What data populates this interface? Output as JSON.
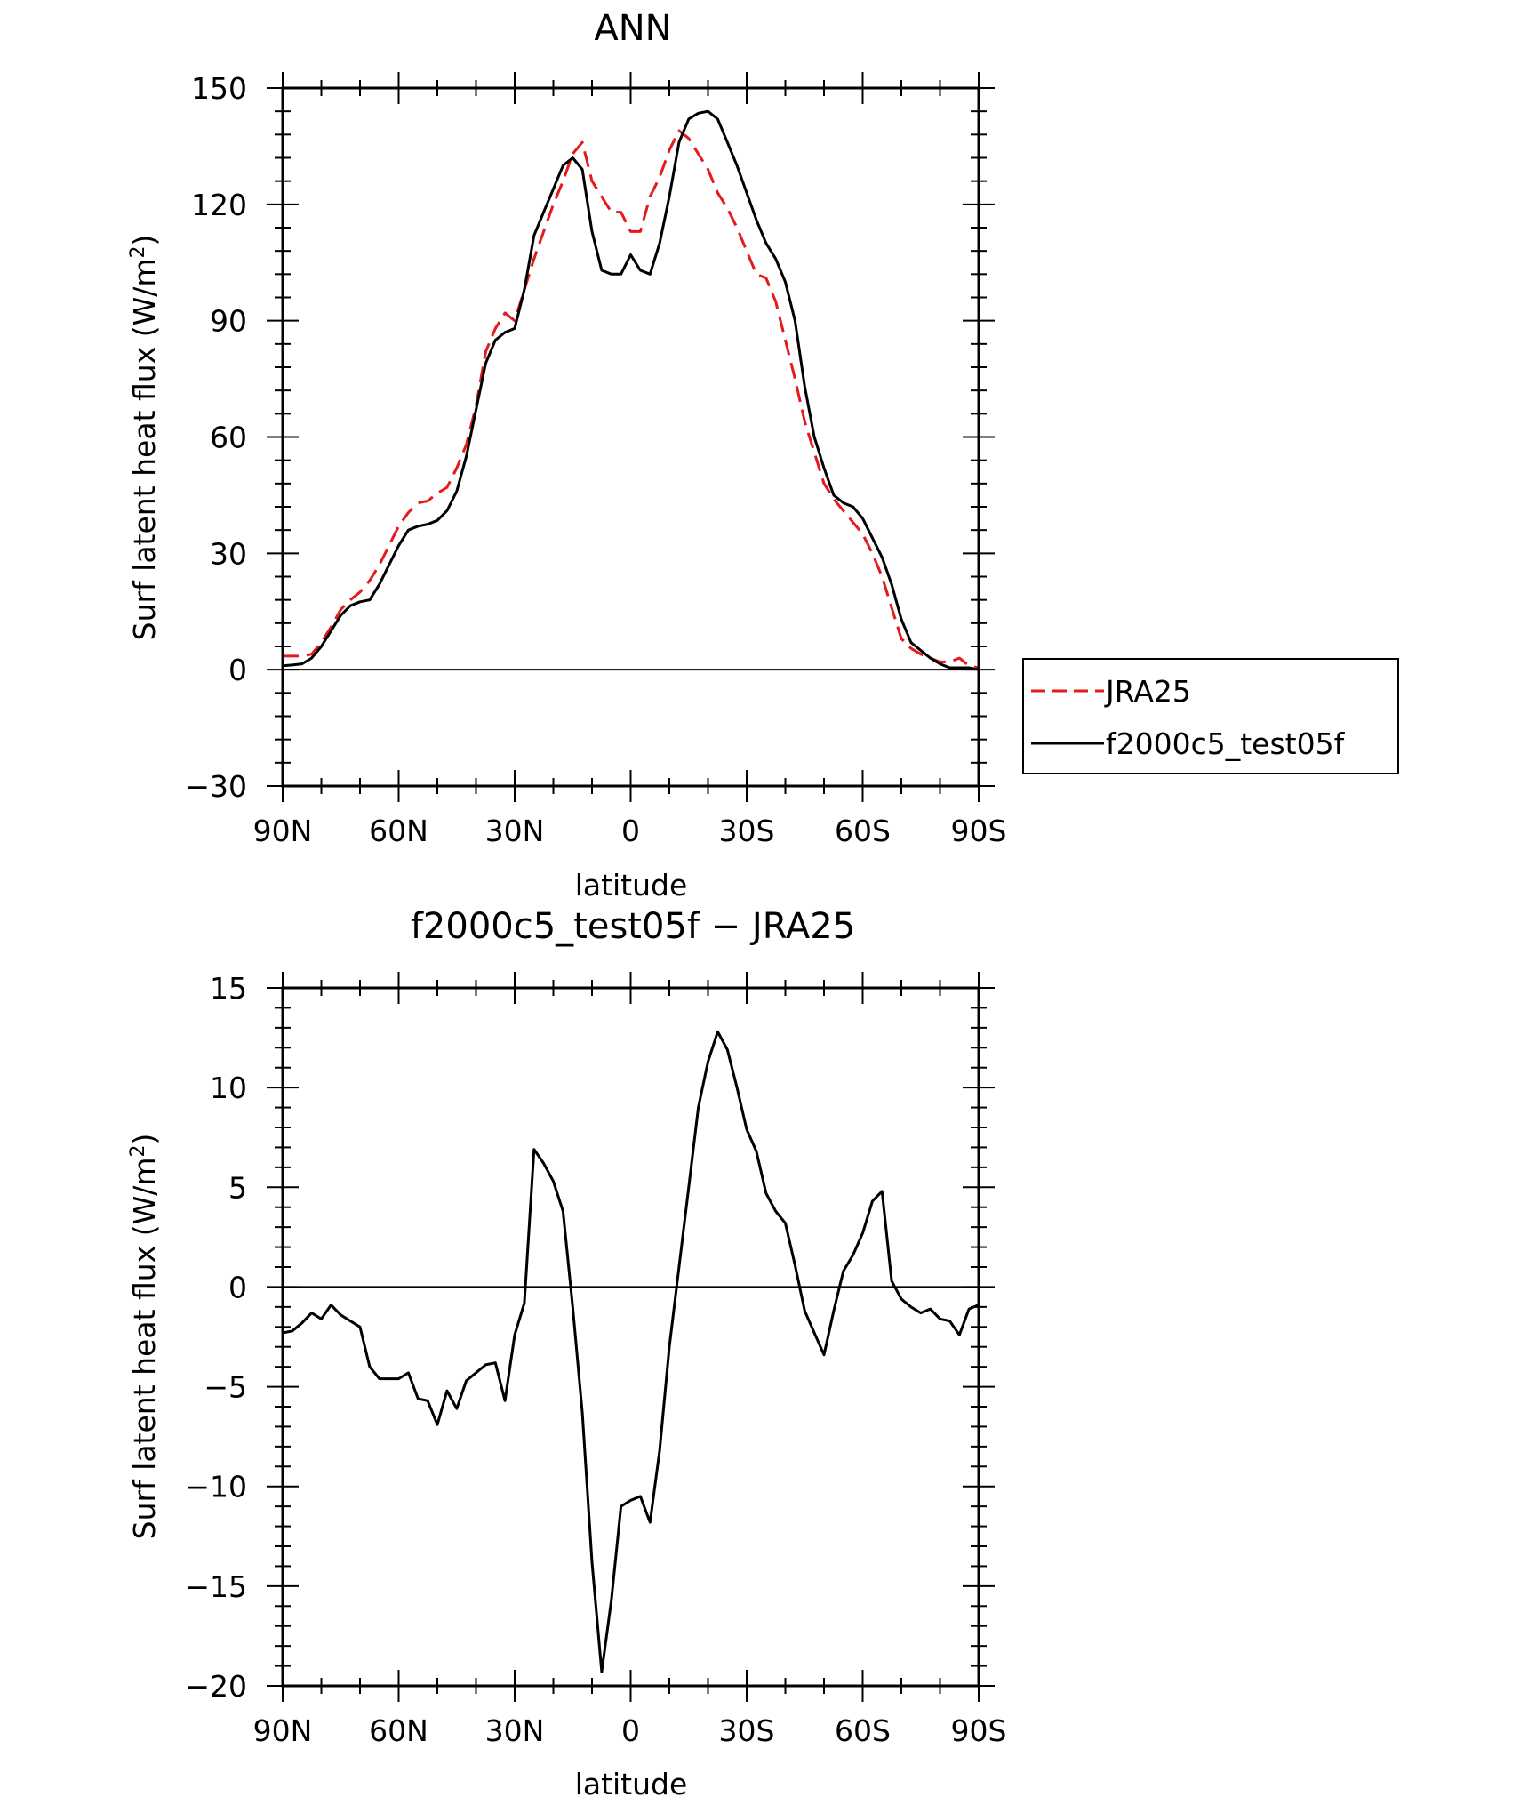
{
  "chart_data": [
    {
      "type": "line",
      "title": "ANN",
      "xlabel": "latitude",
      "ylabel": "Surf latent heat flux (W/m²)",
      "ylabel_main": "Surf latent heat flux (W/m",
      "ylabel_sup": "2",
      "ylabel_end": ")",
      "xlim": [
        90,
        -90
      ],
      "ylim": [
        -30,
        150
      ],
      "x_tick_values": [
        90,
        60,
        30,
        0,
        -30,
        -60,
        -90
      ],
      "x_tick_labels": [
        "90N",
        "60N",
        "30N",
        "0",
        "30S",
        "60S",
        "90S"
      ],
      "y_tick_values": [
        -30,
        0,
        30,
        60,
        90,
        120,
        150
      ],
      "y_tick_labels": [
        "−30",
        "0",
        "30",
        "60",
        "90",
        "120",
        "150"
      ],
      "legend_position": "right",
      "legend": [
        "JRA25",
        "f2000c5_test05f"
      ],
      "series": [
        {
          "name": "JRA25",
          "color": "#e41a1c",
          "dash": true,
          "x": [
            90,
            87.5,
            85,
            82.5,
            80,
            77.5,
            75,
            72.5,
            70,
            67.5,
            65,
            62.5,
            60,
            57.5,
            55,
            52.5,
            50,
            47.5,
            45,
            42.5,
            40,
            37.5,
            35,
            32.5,
            30,
            27.5,
            25,
            22.5,
            20,
            17.5,
            15,
            12.5,
            10,
            7.5,
            5,
            2.5,
            0,
            -2.5,
            -5,
            -7.5,
            -10,
            -12.5,
            -15,
            -17.5,
            -20,
            -22.5,
            -25,
            -27.5,
            -30,
            -32.5,
            -35,
            -37.5,
            -40,
            -42.5,
            -45,
            -47.5,
            -50,
            -52.5,
            -55,
            -57.5,
            -60,
            -62.5,
            -65,
            -67.5,
            -70,
            -72.5,
            -75,
            -77.5,
            -80,
            -82.5,
            -85,
            -87.5,
            -90
          ],
          "y": [
            3.5,
            3.5,
            3.5,
            4,
            7,
            11,
            15.5,
            18,
            20,
            23,
            27,
            32,
            37,
            40.5,
            43,
            43.5,
            45.5,
            47,
            52,
            58,
            68,
            82,
            88,
            92,
            90,
            98,
            106,
            113,
            120,
            126,
            133,
            136,
            126,
            122,
            118,
            118,
            113,
            113,
            122,
            127,
            134,
            139,
            137,
            133,
            129,
            123,
            119,
            114,
            108,
            102,
            101,
            95,
            85,
            75,
            64,
            56,
            48,
            44,
            41,
            38,
            35,
            30,
            24,
            16,
            8,
            5.5,
            4,
            3,
            2,
            2,
            3,
            1,
            0.5
          ]
        },
        {
          "name": "f2000c5_test05f",
          "color": "#000000",
          "dash": false,
          "x": [
            90,
            87.5,
            85,
            82.5,
            80,
            77.5,
            75,
            72.5,
            70,
            67.5,
            65,
            62.5,
            60,
            57.5,
            55,
            52.5,
            50,
            47.5,
            45,
            42.5,
            40,
            37.5,
            35,
            32.5,
            30,
            27.5,
            25,
            22.5,
            20,
            17.5,
            15,
            12.5,
            10,
            7.5,
            5,
            2.5,
            0,
            -2.5,
            -5,
            -7.5,
            -10,
            -12.5,
            -15,
            -17.5,
            -20,
            -22.5,
            -25,
            -27.5,
            -30,
            -32.5,
            -35,
            -37.5,
            -40,
            -42.5,
            -45,
            -47.5,
            -50,
            -52.5,
            -55,
            -57.5,
            -60,
            -62.5,
            -65,
            -67.5,
            -70,
            -72.5,
            -75,
            -77.5,
            -80,
            -82.5,
            -85,
            -87.5,
            -90
          ],
          "y": [
            1,
            1.2,
            1.5,
            3,
            6,
            10,
            14,
            16.5,
            17.5,
            18,
            22,
            27,
            32,
            36,
            37,
            37.5,
            38.5,
            41,
            46,
            55,
            67,
            79,
            85,
            87,
            88,
            98,
            112,
            118,
            124,
            130,
            132,
            129,
            113,
            103,
            102,
            102,
            107,
            103,
            102,
            110,
            122,
            136,
            142,
            143.5,
            144,
            142,
            136,
            130,
            123,
            116,
            110,
            106,
            100,
            90,
            73,
            60,
            52,
            45,
            43,
            42,
            39,
            34,
            29,
            22,
            13,
            7,
            5,
            3,
            1.5,
            0.5,
            0.5,
            0.5,
            0
          ]
        }
      ]
    },
    {
      "type": "line",
      "title": "f2000c5_test05f − JRA25",
      "xlabel": "latitude",
      "ylabel": "Surf latent heat flux (W/m²)",
      "ylabel_main": "Surf latent heat flux (W/m",
      "ylabel_sup": "2",
      "ylabel_end": ")",
      "xlim": [
        90,
        -90
      ],
      "ylim": [
        -20,
        15
      ],
      "x_tick_values": [
        90,
        60,
        30,
        0,
        -30,
        -60,
        -90
      ],
      "x_tick_labels": [
        "90N",
        "60N",
        "30N",
        "0",
        "30S",
        "60S",
        "90S"
      ],
      "y_tick_values": [
        -20,
        -15,
        -10,
        -5,
        0,
        5,
        10,
        15
      ],
      "y_tick_labels": [
        "−20",
        "−15",
        "−10",
        "−5",
        "0",
        "5",
        "10",
        "15"
      ],
      "series": [
        {
          "color": "#000000",
          "dash": false,
          "x": [
            90,
            87.5,
            85,
            82.5,
            80,
            77.5,
            75,
            72.5,
            70,
            67.5,
            65,
            62.5,
            60,
            57.5,
            55,
            52.5,
            50,
            47.5,
            45,
            42.5,
            40,
            37.5,
            35,
            32.5,
            30,
            27.5,
            25,
            22.5,
            20,
            17.5,
            15,
            12.5,
            10,
            7.5,
            5,
            2.5,
            0,
            -2.5,
            -5,
            -7.5,
            -10,
            -12.5,
            -15,
            -17.5,
            -20,
            -22.5,
            -25,
            -27.5,
            -30,
            -32.5,
            -35,
            -37.5,
            -40,
            -42.5,
            -45,
            -47.5,
            -50,
            -52.5,
            -55,
            -57.5,
            -60,
            -62.5,
            -65,
            -67.5,
            -70,
            -72.5,
            -75,
            -77.5,
            -80,
            -82.5,
            -85,
            -87.5,
            -90
          ],
          "y": [
            -2.3,
            -2.2,
            -1.8,
            -1.3,
            -1.6,
            -0.9,
            -1.4,
            -1.7,
            -2.0,
            -4.0,
            -4.6,
            -4.6,
            -4.6,
            -4.3,
            -5.6,
            -5.7,
            -6.9,
            -5.2,
            -6.1,
            -4.7,
            -4.3,
            -3.9,
            -3.8,
            -5.7,
            -2.4,
            -0.8,
            6.9,
            6.2,
            5.3,
            3.8,
            -1.0,
            -6.3,
            -13.8,
            -19.3,
            -15.7,
            -11.0,
            -10.7,
            -10.5,
            -11.8,
            -8.2,
            -3.0,
            1.0,
            5.0,
            9.0,
            11.3,
            12.8,
            11.9,
            10.0,
            7.9,
            6.8,
            4.7,
            3.8,
            3.2,
            1.1,
            -1.2,
            -2.3,
            -3.4,
            -1.2,
            0.8,
            1.6,
            2.7,
            4.3,
            4.8,
            0.3,
            -0.6,
            -1.0,
            -1.3,
            -1.1,
            -1.6,
            -1.7,
            -2.4,
            -1.1,
            -0.9
          ]
        }
      ]
    }
  ]
}
